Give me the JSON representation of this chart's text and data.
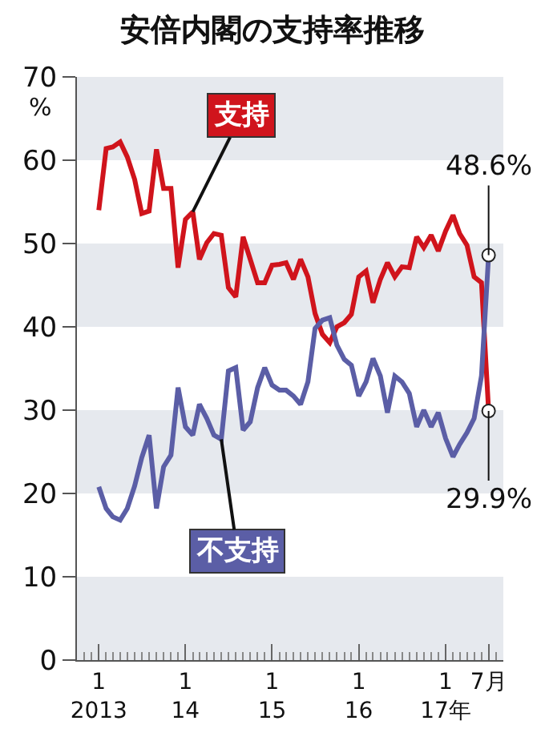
{
  "chart_data": {
    "type": "line",
    "title": "安倍内閣の支持率推移",
    "ylabel": "%",
    "x": [
      "2013-01",
      "2013-02",
      "2013-03",
      "2013-04",
      "2013-05",
      "2013-06",
      "2013-07",
      "2013-08",
      "2013-09",
      "2013-10",
      "2013-11",
      "2013-12",
      "2014-01",
      "2014-02",
      "2014-03",
      "2014-04",
      "2014-05",
      "2014-06",
      "2014-07",
      "2014-08",
      "2014-09",
      "2014-10",
      "2014-11",
      "2014-12",
      "2015-01",
      "2015-02",
      "2015-03",
      "2015-04",
      "2015-05",
      "2015-06",
      "2015-07",
      "2015-08",
      "2015-09",
      "2015-10",
      "2015-11",
      "2015-12",
      "2016-01",
      "2016-02",
      "2016-03",
      "2016-04",
      "2016-05",
      "2016-06",
      "2016-07",
      "2016-08",
      "2016-09",
      "2016-10",
      "2016-11",
      "2016-12",
      "2017-01",
      "2017-02",
      "2017-03",
      "2017-04",
      "2017-05",
      "2017-06",
      "2017-07"
    ],
    "series": [
      {
        "name": "支持",
        "color": "#d0141c",
        "values": [
          54,
          61.4,
          61.6,
          62.2,
          60.4,
          57.7,
          53.6,
          53.9,
          61.3,
          56.6,
          56.6,
          47.1,
          52.9,
          53.8,
          48.1,
          50.1,
          51.2,
          51,
          44.7,
          43.6,
          50.8,
          48.1,
          45.3,
          45.3,
          47.4,
          47.5,
          47.7,
          45.7,
          48.1,
          46,
          41.6,
          39.1,
          38.1,
          40,
          40.5,
          41.5,
          46,
          46.7,
          42.9,
          45.7,
          47.7,
          46,
          47.2,
          47.1,
          50.8,
          49.5,
          51,
          49.1,
          51.5,
          53.4,
          51.2,
          49.8,
          46,
          45.3,
          29.9
        ]
      },
      {
        "name": "不支持",
        "color": "#5b5ea6",
        "values": [
          20.8,
          18.2,
          17.2,
          16.8,
          18.2,
          20.9,
          24.3,
          27,
          18.2,
          23.2,
          24.6,
          32.7,
          28,
          27,
          30.7,
          29,
          27,
          26.5,
          34.7,
          35.1,
          27.6,
          28.6,
          32.7,
          35.1,
          33,
          32.4,
          32.4,
          31.7,
          30.7,
          33.4,
          39.8,
          40.8,
          41.1,
          37.8,
          36.1,
          35.4,
          31.7,
          33.4,
          36.2,
          34.1,
          29.7,
          34.1,
          33.4,
          32,
          28,
          30,
          28,
          29.7,
          26.6,
          24.4,
          25.9,
          27.3,
          29,
          34.1,
          48.6
        ]
      }
    ],
    "annotations": [
      {
        "text": "48.6%",
        "x": "2017-07",
        "y": 48.6
      },
      {
        "text": "29.9%",
        "x": "2017-07",
        "y": 29.9
      }
    ],
    "xlim": [
      "2012-10",
      "2017-09"
    ],
    "xticks": [
      {
        "value": "2013-01",
        "label": "1\n2013"
      },
      {
        "value": "2014-01",
        "label": "1\n14"
      },
      {
        "value": "2015-01",
        "label": "1\n15"
      },
      {
        "value": "2016-01",
        "label": "1\n16"
      },
      {
        "value": "2017-01",
        "label": "1\n17年"
      },
      {
        "value": "2017-07",
        "label": "7月"
      }
    ],
    "ylim": [
      0,
      70
    ],
    "yticks": [
      0,
      10,
      20,
      30,
      40,
      50,
      60,
      70
    ],
    "bands": [
      {
        "axis": "y",
        "from": 0,
        "to": 10,
        "color": "#e6e9ee"
      },
      {
        "axis": "y",
        "from": 20,
        "to": 30,
        "color": "#e6e9ee"
      },
      {
        "axis": "y",
        "from": 40,
        "to": 50,
        "color": "#e6e9ee"
      },
      {
        "axis": "y",
        "from": 60,
        "to": 70,
        "color": "#e6e9ee"
      }
    ],
    "legend": false,
    "marker": "none",
    "line_style": "solid"
  }
}
